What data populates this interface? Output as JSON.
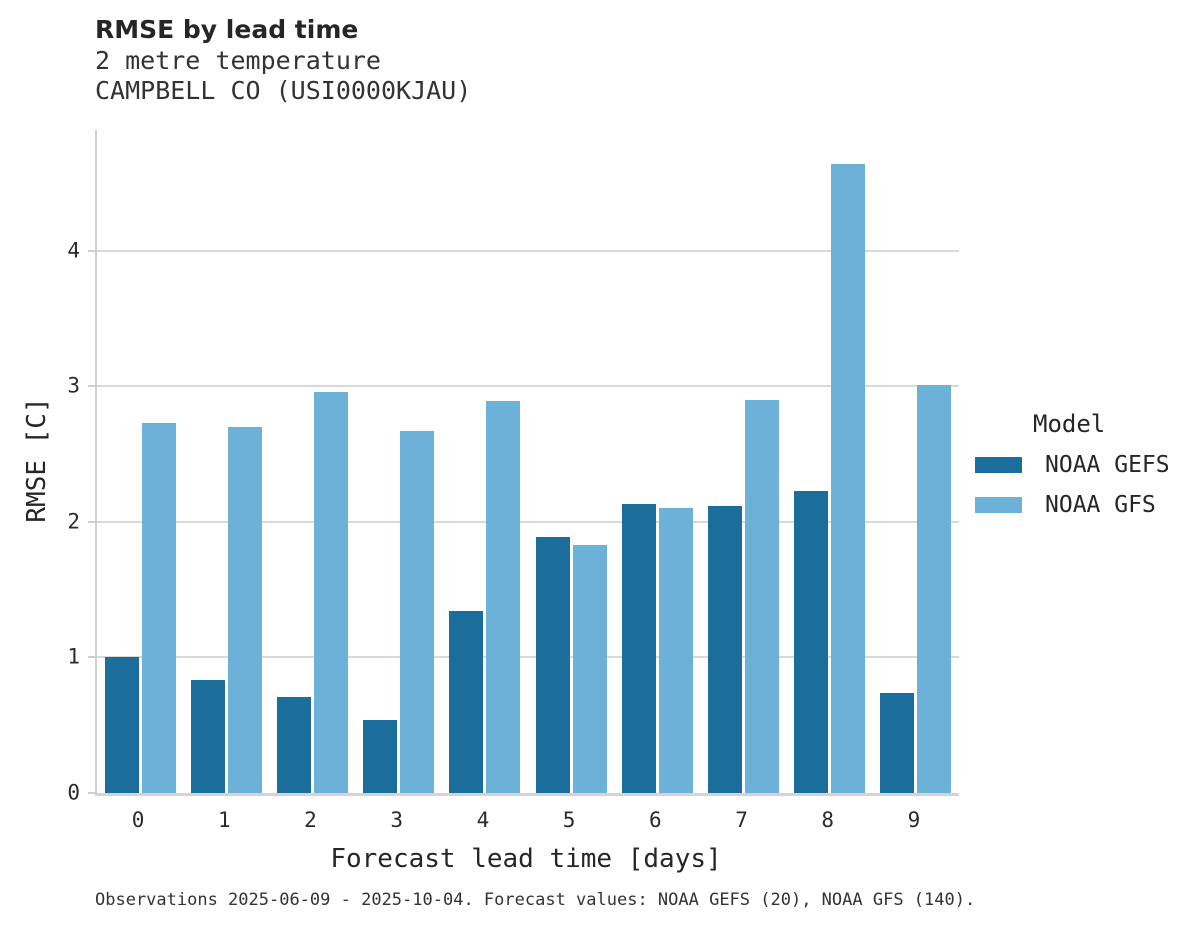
{
  "header": {
    "title": "RMSE by lead time",
    "subtitle1": "2 metre temperature",
    "subtitle2": "CAMPBELL CO (USI0000KJAU)"
  },
  "legend": {
    "title": "Model"
  },
  "footer": {
    "text": "Observations 2025-06-09 - 2025-10-04. Forecast values: NOAA GEFS (20), NOAA GFS (140)."
  },
  "chart_data": {
    "type": "bar",
    "title": "RMSE by lead time",
    "subtitle": "2 metre temperature CAMPBELL CO (USI0000KJAU)",
    "xlabel": "Forecast lead time [days]",
    "ylabel": "RMSE [C]",
    "categories": [
      "0",
      "1",
      "2",
      "3",
      "4",
      "5",
      "6",
      "7",
      "8",
      "9"
    ],
    "series": [
      {
        "name": "NOAA GEFS",
        "color": "#1b6d9c",
        "values": [
          1.0,
          0.83,
          0.71,
          0.54,
          1.34,
          1.89,
          2.13,
          2.12,
          2.23,
          0.74
        ]
      },
      {
        "name": "NOAA GFS",
        "color": "#6cb1d8",
        "values": [
          2.73,
          2.7,
          2.96,
          2.67,
          2.89,
          1.83,
          2.1,
          2.9,
          4.64,
          3.01
        ]
      }
    ],
    "ylim": [
      0,
      4.89
    ],
    "yticks": [
      0,
      1,
      2,
      3,
      4
    ],
    "grid": true,
    "grid_color": "#d9d9d9",
    "legend_title": "Model",
    "legend_position": "right",
    "background": "#ffffff"
  }
}
